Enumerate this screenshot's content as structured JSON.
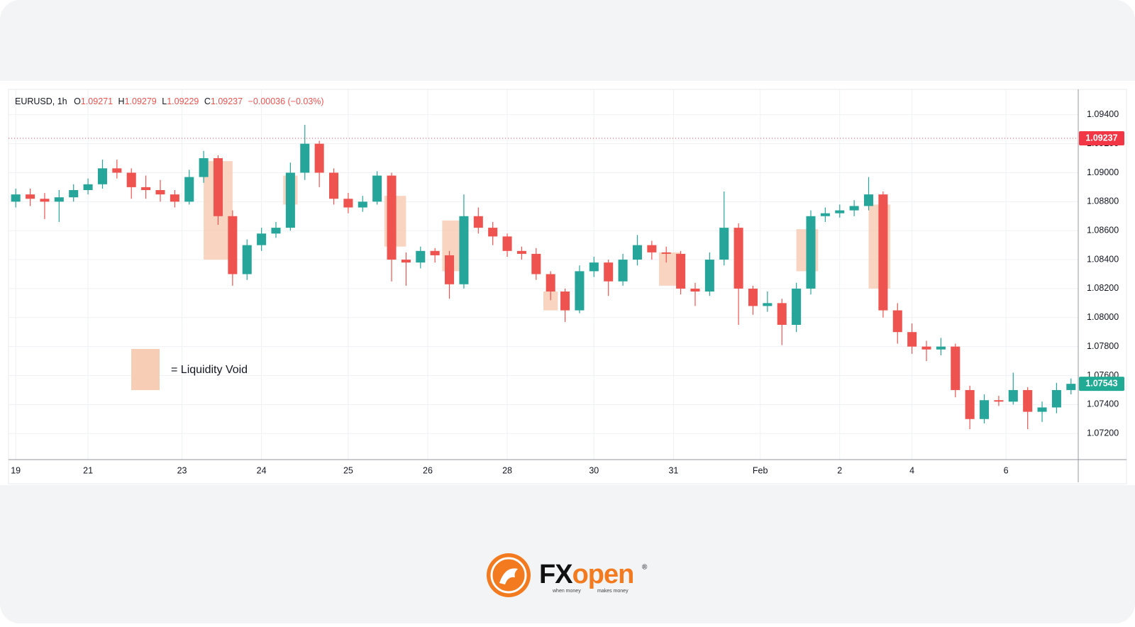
{
  "chart_data": {
    "type": "candlestick",
    "symbol": "EURUSD, 1h",
    "ohlc_header": {
      "o_label": "O",
      "o": "1.09271",
      "h_label": "H",
      "h": "1.09279",
      "l_label": "L",
      "l": "1.09229",
      "c_label": "C",
      "c": "1.09237",
      "change": "−0.00036 (−0.03%)"
    },
    "open": [
      1.088,
      1.0885,
      1.0882,
      1.088,
      1.0883,
      1.0888,
      1.0892,
      1.0903,
      1.09,
      1.089,
      1.0888,
      1.0885,
      1.088,
      1.0897,
      1.091,
      1.087,
      1.083,
      1.085,
      1.0858,
      1.0862,
      1.09,
      1.092,
      1.09,
      1.0882,
      1.0876,
      1.088,
      1.0898,
      1.084,
      1.0838,
      1.0846,
      1.0843,
      1.0823,
      1.087,
      1.0862,
      1.0856,
      1.0846,
      1.0844,
      1.083,
      1.0818,
      1.0805,
      1.0832,
      1.0838,
      1.0825,
      1.084,
      1.085,
      1.0845,
      1.0844,
      1.082,
      1.0818,
      1.084,
      1.0862,
      1.082,
      1.0808,
      1.081,
      1.0795,
      1.082,
      1.087,
      1.0872,
      1.0874,
      1.0877,
      1.0885,
      1.0805,
      1.079,
      1.078,
      1.0778,
      1.078,
      1.075,
      1.073,
      1.0743,
      1.0742,
      1.075,
      1.0735,
      1.0738,
      1.075
    ],
    "high": [
      1.0889,
      1.0889,
      1.0886,
      1.0888,
      1.0892,
      1.0896,
      1.0909,
      1.0909,
      1.0903,
      1.0898,
      1.0895,
      1.0888,
      1.0902,
      1.0915,
      1.0912,
      1.0874,
      1.0854,
      1.0862,
      1.0866,
      1.0907,
      1.0933,
      1.0922,
      1.0903,
      1.0886,
      1.0884,
      1.0901,
      1.09,
      1.0845,
      1.0849,
      1.0848,
      1.0846,
      1.0885,
      1.0876,
      1.0866,
      1.0858,
      1.0849,
      1.0848,
      1.0832,
      1.082,
      1.0836,
      1.0842,
      1.084,
      1.0844,
      1.0857,
      1.0853,
      1.0849,
      1.0846,
      1.0824,
      1.0845,
      1.0887,
      1.0865,
      1.0822,
      1.0818,
      1.0813,
      1.0824,
      1.0874,
      1.0876,
      1.0878,
      1.0881,
      1.0897,
      1.0887,
      1.081,
      1.0796,
      1.0784,
      1.0786,
      1.0782,
      1.0753,
      1.0747,
      1.0746,
      1.0762,
      1.0752,
      1.0742,
      1.0755,
      1.0758
    ],
    "low": [
      1.0876,
      1.0877,
      1.0868,
      1.0866,
      1.088,
      1.0885,
      1.0889,
      1.0896,
      1.0882,
      1.0882,
      1.088,
      1.0876,
      1.0878,
      1.0893,
      1.0864,
      1.0822,
      1.0826,
      1.0846,
      1.0855,
      1.086,
      1.0895,
      1.089,
      1.0878,
      1.0872,
      1.0873,
      1.0878,
      1.0825,
      1.0822,
      1.0834,
      1.0838,
      1.0813,
      1.082,
      1.0858,
      1.085,
      1.0842,
      1.084,
      1.0826,
      1.0812,
      1.0797,
      1.0803,
      1.0828,
      1.0815,
      1.0822,
      1.0836,
      1.084,
      1.0838,
      1.0816,
      1.0808,
      1.0815,
      1.0836,
      1.0795,
      1.0802,
      1.0804,
      1.0781,
      1.079,
      1.0816,
      1.0866,
      1.0869,
      1.087,
      1.0874,
      1.08,
      1.0782,
      1.0775,
      1.077,
      1.0774,
      1.0745,
      1.0723,
      1.0727,
      1.0739,
      1.074,
      1.0723,
      1.0728,
      1.0734,
      1.0747
    ],
    "close": [
      1.0885,
      1.0882,
      1.088,
      1.0883,
      1.0888,
      1.0892,
      1.0903,
      1.09,
      1.089,
      1.0888,
      1.0885,
      1.088,
      1.0897,
      1.091,
      1.087,
      1.083,
      1.085,
      1.0858,
      1.0862,
      1.09,
      1.092,
      1.09,
      1.0882,
      1.0876,
      1.088,
      1.0898,
      1.084,
      1.0838,
      1.0846,
      1.0843,
      1.0823,
      1.087,
      1.0862,
      1.0856,
      1.0846,
      1.0844,
      1.083,
      1.0818,
      1.0805,
      1.0832,
      1.0838,
      1.0825,
      1.084,
      1.085,
      1.0845,
      1.0844,
      1.082,
      1.0818,
      1.084,
      1.0862,
      1.082,
      1.0808,
      1.081,
      1.0795,
      1.082,
      1.087,
      1.0872,
      1.0874,
      1.0877,
      1.0885,
      1.0805,
      1.079,
      1.078,
      1.0778,
      1.078,
      1.075,
      1.073,
      1.0743,
      1.0742,
      1.075,
      1.0735,
      1.0738,
      1.075,
      1.07543
    ],
    "up_color": "#26a69a",
    "down_color": "#ef5350",
    "xlim": [
      -0.5,
      73.5
    ],
    "xticks": [
      {
        "value": 0,
        "label": "19"
      },
      {
        "value": 5,
        "label": "21"
      },
      {
        "value": 11.5,
        "label": "23"
      },
      {
        "value": 17,
        "label": "24"
      },
      {
        "value": 23,
        "label": "25"
      },
      {
        "value": 28.5,
        "label": "26"
      },
      {
        "value": 34,
        "label": "28"
      },
      {
        "value": 40,
        "label": "30"
      },
      {
        "value": 45.5,
        "label": "31"
      },
      {
        "value": 51.5,
        "label": "Feb"
      },
      {
        "value": 57,
        "label": "2"
      },
      {
        "value": 62,
        "label": "4"
      },
      {
        "value": 68.5,
        "label": "6"
      }
    ],
    "ylim": [
      1.0702,
      1.09575
    ],
    "yticks": [
      {
        "value": 1.072,
        "label": "1.07200"
      },
      {
        "value": 1.074,
        "label": "1.07400"
      },
      {
        "value": 1.076,
        "label": "1.07600"
      },
      {
        "value": 1.078,
        "label": "1.07800"
      },
      {
        "value": 1.08,
        "label": "1.08000"
      },
      {
        "value": 1.082,
        "label": "1.08200"
      },
      {
        "value": 1.084,
        "label": "1.08400"
      },
      {
        "value": 1.086,
        "label": "1.08600"
      },
      {
        "value": 1.088,
        "label": "1.08800"
      },
      {
        "value": 1.09,
        "label": "1.09000"
      },
      {
        "value": 1.092,
        "label": "1.09200"
      },
      {
        "value": 1.094,
        "label": "1.09400"
      }
    ],
    "grid": true,
    "price_lines": [
      {
        "value": 1.09237,
        "color": "#f23645",
        "dotted": true
      },
      {
        "value": 1.07543,
        "color": "#22ab94",
        "dotted": false
      }
    ],
    "zones": [
      {
        "x": [
          13,
          15
        ],
        "y": [
          1.084,
          1.0908
        ]
      },
      {
        "x": [
          18.5,
          19.5
        ],
        "y": [
          1.0878,
          1.0898
        ]
      },
      {
        "x": [
          25.5,
          27
        ],
        "y": [
          1.0849,
          1.0884
        ]
      },
      {
        "x": [
          29.5,
          31
        ],
        "y": [
          1.0832,
          1.0867
        ]
      },
      {
        "x": [
          36.5,
          37.5
        ],
        "y": [
          1.0805,
          1.0818
        ]
      },
      {
        "x": [
          44.5,
          46
        ],
        "y": [
          1.0822,
          1.0845
        ]
      },
      {
        "x": [
          54,
          55.5
        ],
        "y": [
          1.0832,
          1.0861
        ]
      },
      {
        "x": [
          59,
          60.5
        ],
        "y": [
          1.082,
          1.0878
        ]
      }
    ],
    "zone_color": "#f8cdb6",
    "legend_label": "= Liquidity Void"
  },
  "logo": {
    "brand_a": "FX",
    "brand_b": "open",
    "mark": "®",
    "tagline_a": "when money",
    "tagline_b": "makes money"
  }
}
